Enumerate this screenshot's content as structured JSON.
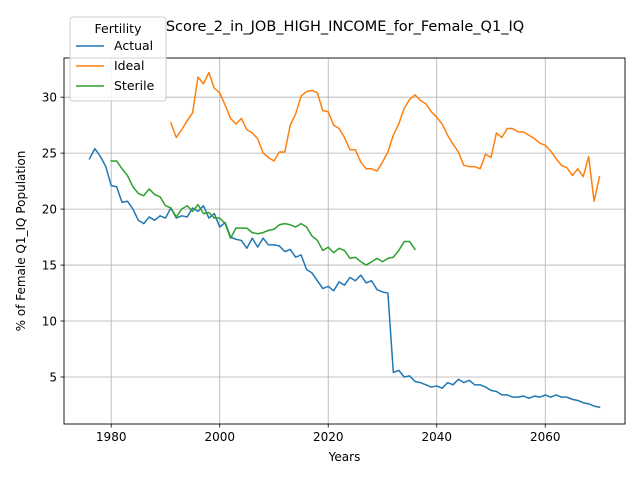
{
  "chart_data": {
    "type": "line",
    "title": "Score_2_in_JOB_HIGH_INCOME_for_Female_Q1_IQ",
    "xlabel": "Years",
    "ylabel": "% of Female Q1_IQ Population",
    "xlim": [
      1971.3,
      2074.7
    ],
    "ylim": [
      0.8,
      33.5
    ],
    "xticks": [
      1980,
      2000,
      2020,
      2040,
      2060
    ],
    "yticks": [
      5,
      10,
      15,
      20,
      25,
      30
    ],
    "grid": true,
    "legend": {
      "title": "Fertility",
      "placement": "top-left"
    },
    "series": [
      {
        "name": "Actual",
        "color": "#1f77b4",
        "x": [
          1976,
          1977,
          1978,
          1979,
          1980,
          1981,
          1982,
          1983,
          1984,
          1985,
          1986,
          1987,
          1988,
          1989,
          1990,
          1991,
          1992,
          1993,
          1994,
          1995,
          1996,
          1997,
          1998,
          1999,
          2000,
          2001,
          2002,
          2003,
          2004,
          2005,
          2006,
          2007,
          2008,
          2009,
          2010,
          2011,
          2012,
          2013,
          2014,
          2015,
          2016,
          2017,
          2018,
          2019,
          2020,
          2021,
          2022,
          2023,
          2024,
          2025,
          2026,
          2027,
          2028,
          2029,
          2030,
          2031,
          2032,
          2033,
          2034,
          2035,
          2036,
          2037,
          2038,
          2039,
          2040,
          2041,
          2042,
          2043,
          2044,
          2045,
          2046,
          2047,
          2048,
          2049,
          2050,
          2051,
          2052,
          2053,
          2054,
          2055,
          2056,
          2057,
          2058,
          2059,
          2060,
          2061,
          2062,
          2063,
          2064,
          2065,
          2066,
          2067,
          2068,
          2069,
          2070
        ],
        "values": [
          24.5,
          25.4,
          24.7,
          23.8,
          22.1,
          22.0,
          20.6,
          20.7,
          20.0,
          19.0,
          18.7,
          19.3,
          19.0,
          19.4,
          19.2,
          20.1,
          19.2,
          19.4,
          19.3,
          20.1,
          19.8,
          20.3,
          19.2,
          19.6,
          18.4,
          18.8,
          17.5,
          17.3,
          17.2,
          16.5,
          17.4,
          16.6,
          17.4,
          16.8,
          16.8,
          16.7,
          16.2,
          16.4,
          15.7,
          15.9,
          14.6,
          14.3,
          13.6,
          12.9,
          13.1,
          12.7,
          13.5,
          13.2,
          13.9,
          13.6,
          14.1,
          13.4,
          13.6,
          12.8,
          12.6,
          12.5,
          5.4,
          5.6,
          5.0,
          5.1,
          4.6,
          4.5,
          4.3,
          4.1,
          4.2,
          4.0,
          4.5,
          4.3,
          4.8,
          4.5,
          4.7,
          4.3,
          4.3,
          4.1,
          3.8,
          3.7,
          3.4,
          3.4,
          3.2,
          3.2,
          3.3,
          3.1,
          3.3,
          3.2,
          3.4,
          3.2,
          3.4,
          3.2,
          3.2,
          3.0,
          2.9,
          2.7,
          2.6,
          2.4,
          2.3
        ]
      },
      {
        "name": "Ideal",
        "color": "#ff7f0e",
        "x": [
          1991,
          1992,
          1993,
          1994,
          1995,
          1996,
          1997,
          1998,
          1999,
          2000,
          2001,
          2002,
          2003,
          2004,
          2005,
          2006,
          2007,
          2008,
          2009,
          2010,
          2011,
          2012,
          2013,
          2014,
          2015,
          2016,
          2017,
          2018,
          2019,
          2020,
          2021,
          2022,
          2023,
          2024,
          2025,
          2026,
          2027,
          2028,
          2029,
          2030,
          2031,
          2032,
          2033,
          2034,
          2035,
          2036,
          2037,
          2038,
          2039,
          2040,
          2041,
          2042,
          2043,
          2044,
          2045,
          2046,
          2047,
          2048,
          2049,
          2050,
          2051,
          2052,
          2053,
          2054,
          2055,
          2056,
          2057,
          2058,
          2059,
          2060,
          2061,
          2062,
          2063,
          2064,
          2065,
          2066,
          2067,
          2068,
          2069,
          2070
        ],
        "values": [
          27.7,
          26.4,
          27.1,
          27.9,
          28.6,
          31.8,
          31.2,
          32.2,
          30.8,
          30.4,
          29.3,
          28.1,
          27.6,
          28.1,
          27.1,
          26.8,
          26.3,
          25.0,
          24.6,
          24.3,
          25.1,
          25.1,
          27.5,
          28.5,
          30.1,
          30.5,
          30.6,
          30.4,
          28.8,
          28.7,
          27.5,
          27.2,
          26.4,
          25.3,
          25.3,
          24.2,
          23.6,
          23.6,
          23.4,
          24.2,
          25.1,
          26.6,
          27.6,
          29.0,
          29.8,
          30.2,
          29.7,
          29.4,
          28.7,
          28.2,
          27.6,
          26.6,
          25.8,
          25.1,
          23.9,
          23.8,
          23.8,
          23.6,
          24.9,
          24.6,
          26.8,
          26.4,
          27.2,
          27.2,
          26.9,
          26.9,
          26.6,
          26.3,
          25.9,
          25.7,
          25.2,
          24.5,
          23.9,
          23.7,
          23.0,
          23.6,
          22.9,
          24.7,
          20.7,
          22.9
        ]
      },
      {
        "name": "Sterile",
        "color": "#2ca02c",
        "x": [
          1980,
          1981,
          1982,
          1983,
          1984,
          1985,
          1986,
          1987,
          1988,
          1989,
          1990,
          1991,
          1992,
          1993,
          1994,
          1995,
          1996,
          1997,
          1998,
          1999,
          2000,
          2001,
          2002,
          2003,
          2004,
          2005,
          2006,
          2007,
          2008,
          2009,
          2010,
          2011,
          2012,
          2013,
          2014,
          2015,
          2016,
          2017,
          2018,
          2019,
          2020,
          2021,
          2022,
          2023,
          2024,
          2025,
          2026,
          2027,
          2028,
          2029,
          2030,
          2031,
          2032,
          2033,
          2034,
          2035,
          2036
        ],
        "values": [
          24.3,
          24.3,
          23.6,
          23.0,
          22.0,
          21.4,
          21.2,
          21.8,
          21.3,
          21.1,
          20.3,
          20.1,
          19.3,
          20.0,
          20.3,
          19.8,
          20.4,
          19.6,
          19.7,
          19.2,
          19.2,
          18.7,
          17.4,
          18.3,
          18.3,
          18.3,
          17.9,
          17.8,
          17.9,
          18.1,
          18.2,
          18.6,
          18.7,
          18.6,
          18.4,
          18.7,
          18.4,
          17.6,
          17.2,
          16.3,
          16.6,
          16.1,
          16.5,
          16.3,
          15.6,
          15.7,
          15.3,
          15.0,
          15.3,
          15.6,
          15.3,
          15.6,
          15.7,
          16.3,
          17.1,
          17.1,
          16.4
        ]
      }
    ]
  }
}
